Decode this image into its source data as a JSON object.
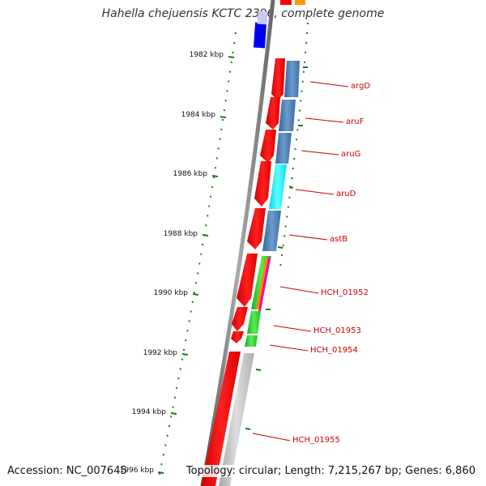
{
  "title": "Hahella chejuensis KCTC 2396, complete genome",
  "accession": "Accession: NC_007645",
  "topology": "Topology: circular; Length: 7,215,267 bp; Genes: 6,860",
  "ticks": [
    {
      "label": "1982 kbp"
    },
    {
      "label": "1984 kbp"
    },
    {
      "label": "1986 kbp"
    },
    {
      "label": "1988 kbp"
    },
    {
      "label": "1990 kbp"
    },
    {
      "label": "1992 kbp"
    },
    {
      "label": "1994 kbp"
    },
    {
      "label": "1996 kbp"
    }
  ],
  "genes": [
    {
      "label": "argD"
    },
    {
      "label": "aruF"
    },
    {
      "label": "aruG"
    },
    {
      "label": "aruD"
    },
    {
      "label": "astB"
    },
    {
      "label": "HCH_01952"
    },
    {
      "label": "HCH_01953"
    },
    {
      "label": "HCH_01954"
    },
    {
      "label": "HCH_01955"
    }
  ],
  "colors": {
    "cds": "#ff0000",
    "cog_steelblue": "#4a7fb5",
    "cog_cyan": "#00ffff",
    "cog_green": "#33cc33",
    "cog_gray": "#bbbbbb",
    "cog_blue": "#0000ee",
    "tick": "#1a7a1a",
    "label": "#cc0000",
    "backbone": "#777777"
  }
}
